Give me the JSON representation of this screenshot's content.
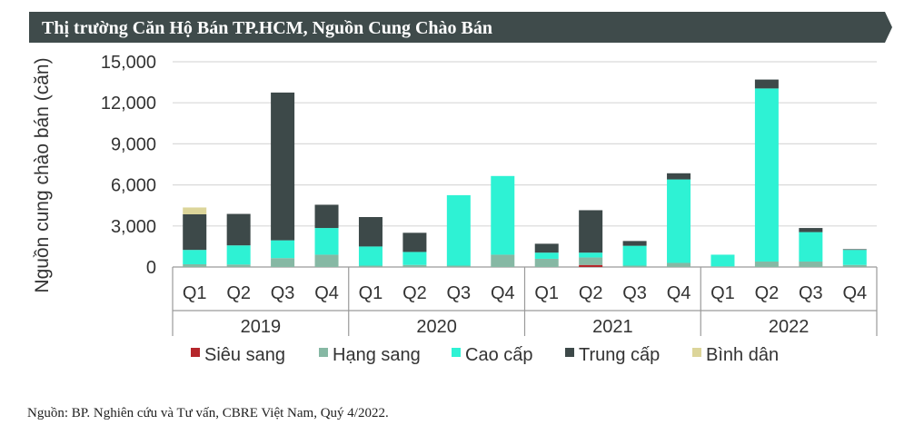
{
  "header": {
    "title": "Thị trường Căn Hộ Bán TP.HCM, Nguồn Cung Chào Bán",
    "band_color": "#3f4b4b"
  },
  "chart_data": {
    "type": "bar",
    "stacked": true,
    "title": "Thị trường Căn Hộ Bán TP.HCM, Nguồn Cung Chào Bán",
    "ylabel": "Nguồn cung chào bán (căn)",
    "xlabel": "",
    "ylim": [
      0,
      15000
    ],
    "yticks": [
      0,
      3000,
      6000,
      9000,
      12000,
      15000
    ],
    "ytick_labels": [
      "0",
      "3,000",
      "6,000",
      "9,000",
      "12,000",
      "15,000"
    ],
    "grid": true,
    "legend_position": "bottom",
    "categories": [
      "Q1",
      "Q2",
      "Q3",
      "Q4",
      "Q1",
      "Q2",
      "Q3",
      "Q4",
      "Q1",
      "Q2",
      "Q3",
      "Q4",
      "Q1",
      "Q2",
      "Q3",
      "Q4"
    ],
    "groups": [
      {
        "label": "2019",
        "count": 4
      },
      {
        "label": "2020",
        "count": 4
      },
      {
        "label": "2021",
        "count": 4
      },
      {
        "label": "2022",
        "count": 4
      }
    ],
    "series": [
      {
        "name": "Siêu sang",
        "color": "#b5262b",
        "values": [
          0,
          0,
          0,
          0,
          0,
          0,
          0,
          0,
          0,
          150,
          0,
          0,
          0,
          0,
          0,
          0
        ]
      },
      {
        "name": "Hạng sang",
        "color": "#86b8a4",
        "values": [
          200,
          180,
          650,
          900,
          100,
          150,
          100,
          900,
          600,
          550,
          100,
          300,
          50,
          400,
          400,
          150
        ]
      },
      {
        "name": "Cao cấp",
        "color": "#2ef2d4",
        "values": [
          1050,
          1400,
          1300,
          1950,
          1400,
          950,
          5150,
          5750,
          450,
          350,
          1450,
          6100,
          850,
          12650,
          2150,
          1100
        ]
      },
      {
        "name": "Trung cấp",
        "color": "#3d4949",
        "values": [
          2600,
          2300,
          10800,
          1700,
          2150,
          1400,
          0,
          0,
          650,
          3100,
          350,
          450,
          0,
          650,
          300,
          50
        ]
      },
      {
        "name": "Bình dân",
        "color": "#dcd59a",
        "values": [
          500,
          0,
          0,
          0,
          0,
          0,
          0,
          0,
          0,
          0,
          0,
          0,
          0,
          0,
          0,
          0
        ]
      }
    ]
  },
  "footer": {
    "source": "Nguồn: BP. Nghiên cứu và Tư vấn, CBRE Việt Nam, Quý 4/2022."
  }
}
